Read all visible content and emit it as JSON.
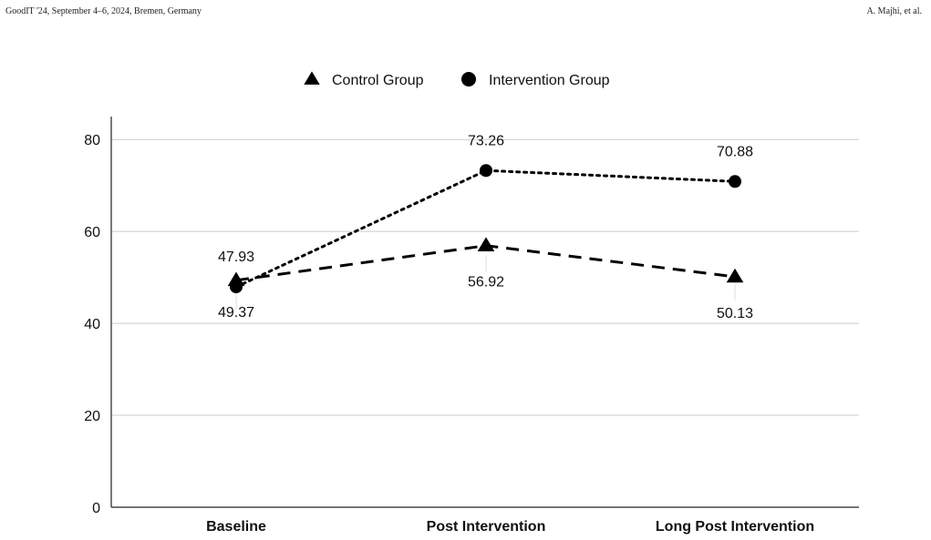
{
  "header": {
    "left": "GoodIT '24, September 4–6, 2024, Bremen, Germany",
    "right": "A. Majhi, et al."
  },
  "chart_data": {
    "type": "line",
    "categories": [
      "Baseline",
      "Post Intervention",
      "Long Post Intervention"
    ],
    "series": [
      {
        "name": "Control Group",
        "values": [
          49.37,
          56.92,
          50.13
        ],
        "marker": "triangle",
        "line_style": "dashed",
        "labels": [
          "49.37",
          "56.92",
          "50.13"
        ]
      },
      {
        "name": "Intervention Group",
        "values": [
          47.93,
          73.26,
          70.88
        ],
        "marker": "circle",
        "line_style": "dotted",
        "labels": [
          "47.93",
          "73.26",
          "70.88"
        ]
      }
    ],
    "yticks": [
      "0",
      "20",
      "40",
      "60",
      "80"
    ],
    "ylim": [
      0,
      85
    ],
    "grid": true,
    "legend": "top",
    "colors": {
      "series": "#000000",
      "grid": "#cccccc"
    }
  }
}
